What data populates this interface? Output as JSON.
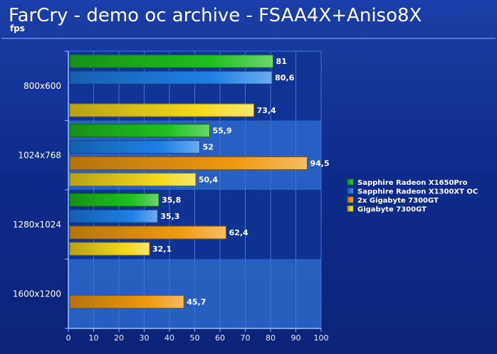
{
  "chart_data": {
    "type": "bar",
    "orientation": "horizontal",
    "title": "FarCry - demo oc archive - FSAA4X+Aniso8X",
    "subtitle": "fps",
    "categories": [
      "800x600",
      "1024x768",
      "1280x1024",
      "1600x1200"
    ],
    "series": [
      {
        "name": "Sapphire Radeon X1650Pro",
        "color": "#1fc01f",
        "values": [
          81,
          55.9,
          35.8,
          null
        ],
        "labels": [
          "81",
          "55,9",
          "35,8",
          ""
        ]
      },
      {
        "name": "Sapphire Radeon X1300XT OC",
        "color": "#1e7fe6",
        "values": [
          80.6,
          52,
          35.3,
          null
        ],
        "labels": [
          "80,6",
          "52",
          "35,3",
          ""
        ]
      },
      {
        "name": "2x Gigabyte 7300GT",
        "color": "#f09a10",
        "values": [
          null,
          94.5,
          62.4,
          45.7
        ],
        "labels": [
          "",
          "94,5",
          "62,4",
          "45,7"
        ]
      },
      {
        "name": "Gigabyte 7300GT",
        "color": "#f5d81c",
        "values": [
          73.4,
          50.4,
          32.1,
          null
        ],
        "labels": [
          "73,4",
          "50,4",
          "32,1",
          ""
        ]
      }
    ],
    "xlim": [
      0,
      100
    ],
    "x_ticks": [
      "0",
      "10",
      "20",
      "30",
      "40",
      "50",
      "60",
      "70",
      "80",
      "90",
      "100"
    ],
    "grid": true,
    "legend_position": "right"
  }
}
